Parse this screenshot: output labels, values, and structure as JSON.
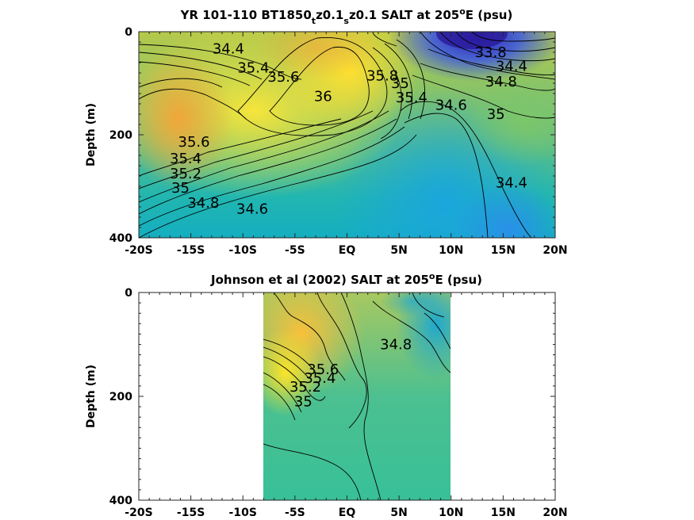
{
  "chart_data": [
    {
      "type": "contour",
      "title_parts": [
        "YR 101-110 BT1850",
        "t",
        "z0.1",
        "s",
        "z0.1 SALT at 205",
        "o",
        "E (psu)"
      ],
      "xlabel": "",
      "ylabel": "Depth (m)",
      "xlim": [
        -20,
        20
      ],
      "ylim": [
        400,
        0
      ],
      "x_ticks": [
        -20,
        -15,
        -10,
        -5,
        0,
        5,
        10,
        15,
        20
      ],
      "x_tick_labels": [
        "-20S",
        "-15S",
        "-10S",
        "-5S",
        "EQ",
        "5N",
        "10N",
        "15N",
        "20N"
      ],
      "y_ticks": [
        0,
        200,
        400
      ],
      "y_tick_labels": [
        "0",
        "200",
        "400"
      ],
      "coverage": [
        -20,
        20
      ],
      "contour_labels": [
        {
          "text": "35.6",
          "lat": -14.7,
          "depth": 214
        },
        {
          "text": "35.4",
          "lat": -15.5,
          "depth": 246
        },
        {
          "text": "35.2",
          "lat": -15.5,
          "depth": 275
        },
        {
          "text": "35",
          "lat": -16,
          "depth": 303
        },
        {
          "text": "34.8",
          "lat": -13.8,
          "depth": 332
        },
        {
          "text": "34.6",
          "lat": -9.1,
          "depth": 344
        },
        {
          "text": "36",
          "lat": -2.3,
          "depth": 125
        },
        {
          "text": "35.8",
          "lat": 3.4,
          "depth": 85
        },
        {
          "text": "35.6",
          "lat": -6.1,
          "depth": 88
        },
        {
          "text": "35.4",
          "lat": -9,
          "depth": 70
        },
        {
          "text": "34.4",
          "lat": -11.4,
          "depth": 33
        },
        {
          "text": "35",
          "lat": 5.1,
          "depth": 100
        },
        {
          "text": "35.4",
          "lat": 6.2,
          "depth": 128
        },
        {
          "text": "34.6",
          "lat": 10,
          "depth": 142
        },
        {
          "text": "35",
          "lat": 14.3,
          "depth": 160
        },
        {
          "text": "33.8",
          "lat": 13.8,
          "depth": 40
        },
        {
          "text": "34.4",
          "lat": 15.8,
          "depth": 67
        },
        {
          "text": "34.8",
          "lat": 14.8,
          "depth": 97
        },
        {
          "text": "34.4",
          "lat": 15.8,
          "depth": 293
        }
      ]
    },
    {
      "type": "contour",
      "title_parts": [
        "Johnson et al (2002) SALT at 205",
        "o",
        "E (psu)"
      ],
      "xlabel": "",
      "ylabel": "Depth (m)",
      "xlim": [
        -20,
        20
      ],
      "ylim": [
        400,
        0
      ],
      "x_ticks": [
        -20,
        -15,
        -10,
        -5,
        0,
        5,
        10,
        15,
        20
      ],
      "x_tick_labels": [
        "-20S",
        "-15S",
        "-10S",
        "-5S",
        "EQ",
        "5N",
        "10N",
        "15N",
        "20N"
      ],
      "y_ticks": [
        0,
        200,
        400
      ],
      "y_tick_labels": [
        "0",
        "200",
        "400"
      ],
      "coverage": [
        -8,
        10
      ],
      "contour_labels": [
        {
          "text": "34.8",
          "lat": 4.7,
          "depth": 100
        },
        {
          "text": "35.6",
          "lat": -2.3,
          "depth": 148
        },
        {
          "text": "35.4",
          "lat": -2.6,
          "depth": 165
        },
        {
          "text": "35.2",
          "lat": -4,
          "depth": 182
        },
        {
          "text": "35",
          "lat": -4.2,
          "depth": 210
        }
      ]
    }
  ]
}
